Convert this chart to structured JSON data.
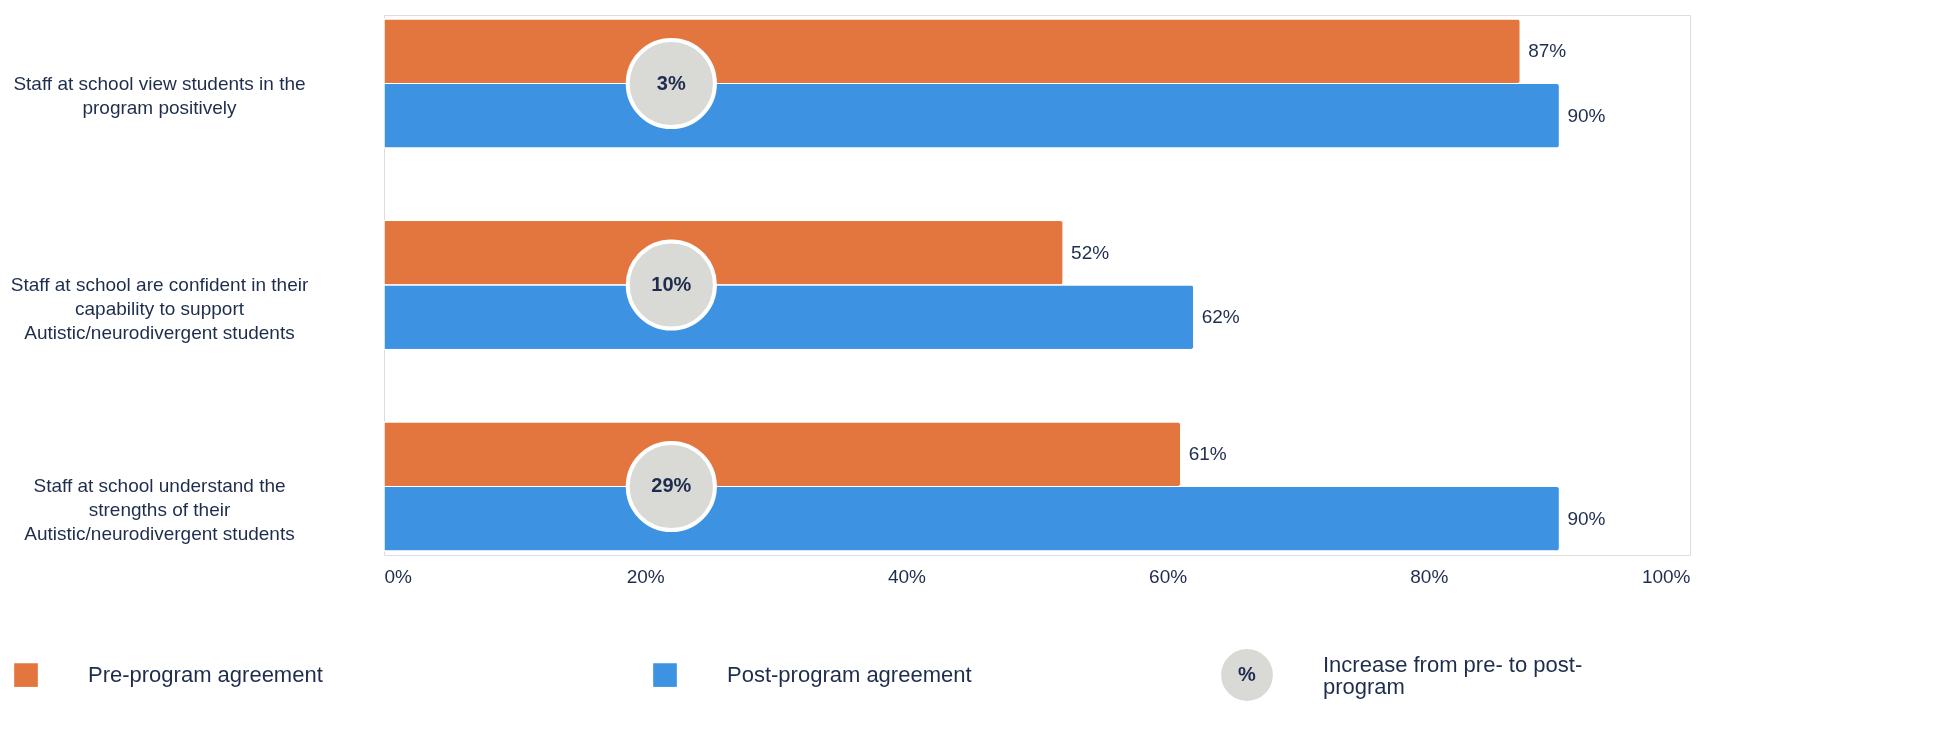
{
  "chart_data": {
    "type": "bar",
    "orientation": "horizontal",
    "categories": [
      "Staff at school view students in the program positively",
      "Staff at school are confident in their capability to support Autistic/neurodivergent students",
      "Staff at school understand the strengths of their Autistic/neurodivergent students"
    ],
    "series": [
      {
        "name": "Pre-program agreement",
        "color": "#e3763e",
        "values": [
          87,
          52,
          61
        ],
        "value_labels": [
          "87%",
          "52%",
          "61%"
        ]
      },
      {
        "name": "Post-program agreement",
        "color": "#3d93e2",
        "values": [
          90,
          62,
          90
        ],
        "value_labels": [
          "90%",
          "62%",
          "90%"
        ]
      }
    ],
    "xlim": [
      0,
      100
    ],
    "xticks": [
      {
        "value": 0,
        "label": "0%"
      },
      {
        "value": 20,
        "label": "20%"
      },
      {
        "value": 40,
        "label": "40%"
      },
      {
        "value": 60,
        "label": "60%"
      },
      {
        "value": 80,
        "label": "80%"
      },
      {
        "value": 100,
        "label": "100%"
      }
    ],
    "grid": false,
    "legend": "bottom",
    "annotations": [
      "3%",
      "10%",
      "29%",
      "%",
      "Increase from pre- to post-program"
    ]
  }
}
